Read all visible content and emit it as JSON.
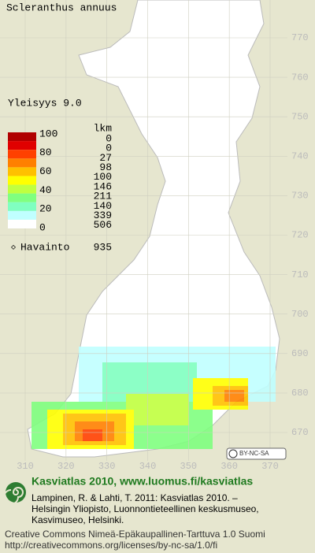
{
  "title": "Scleranthus annuus",
  "frequency": "Yleisyys  9.0",
  "legend": {
    "scale_labels": [
      100,
      80,
      60,
      40,
      20,
      0
    ],
    "count_header": "lkm",
    "counts": [
      0,
      0,
      27,
      98,
      100,
      146,
      211,
      140,
      339,
      506
    ],
    "colors": [
      "#b00000",
      "#e00000",
      "#ff4000",
      "#ff8000",
      "#ffc000",
      "#ffff00",
      "#c0ff40",
      "#80ff80",
      "#80ffc0",
      "#c0ffff",
      "#ffffff"
    ]
  },
  "observations": {
    "label": "Havainto",
    "count": 935
  },
  "map": {
    "yticks": [
      770,
      760,
      750,
      740,
      730,
      720,
      710,
      700,
      690,
      680,
      670
    ],
    "xticks": [
      310,
      320,
      330,
      340,
      350,
      360,
      370
    ]
  },
  "badge": "BY-NC-SA",
  "footer": {
    "heading": "Kasviatlas 2010, www.luomus.fi/kasviatlas",
    "lines": [
      "Lampinen, R. & Lahti, T. 2011: Kasviatlas 2010. –",
      "Helsingin Yliopisto, Luonnontieteellinen keskusmuseo,",
      "Kasvimuseo, Helsinki."
    ],
    "license": [
      "Creative Commons Nimeä-Epäkaupallinen-Tarttuva 1.0 Suomi",
      "http://creativecommons.org/licenses/by-nc-sa/1.0/fi"
    ]
  }
}
